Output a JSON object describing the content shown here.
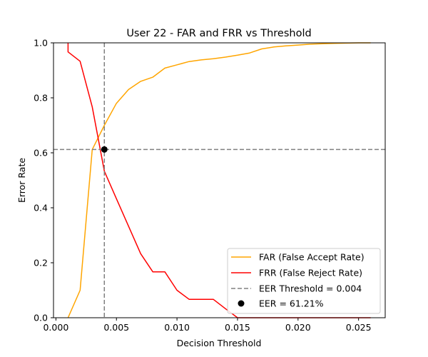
{
  "chart_data": {
    "type": "line",
    "title": "User 22 - FAR and FRR vs Threshold",
    "xlabel": "Decision Threshold",
    "ylabel": "Error Rate",
    "xlim": [
      -0.0002,
      0.0272
    ],
    "ylim": [
      0.0,
      1.0
    ],
    "xticks": [
      0.0,
      0.005,
      0.01,
      0.015,
      0.02,
      0.025
    ],
    "xtick_labels": [
      "0.000",
      "0.005",
      "0.010",
      "0.015",
      "0.020",
      "0.025"
    ],
    "yticks": [
      0.0,
      0.2,
      0.4,
      0.6,
      0.8,
      1.0
    ],
    "ytick_labels": [
      "0.0",
      "0.2",
      "0.4",
      "0.6",
      "0.8",
      "1.0"
    ],
    "legend_position": "lower-right",
    "series": [
      {
        "name": "FAR (False Accept Rate)",
        "color": "#ffa500",
        "x": [
          0.001,
          0.002,
          0.003,
          0.004,
          0.005,
          0.006,
          0.007,
          0.008,
          0.009,
          0.01,
          0.011,
          0.012,
          0.013,
          0.014,
          0.015,
          0.016,
          0.017,
          0.018,
          0.019,
          0.02,
          0.021,
          0.022,
          0.023,
          0.024,
          0.025,
          0.026
        ],
        "y": [
          0.0,
          0.1,
          0.612,
          0.7,
          0.78,
          0.83,
          0.86,
          0.875,
          0.908,
          0.92,
          0.932,
          0.938,
          0.942,
          0.948,
          0.955,
          0.963,
          0.978,
          0.985,
          0.989,
          0.992,
          0.995,
          0.997,
          0.998,
          0.999,
          1.0,
          1.0
        ]
      },
      {
        "name": "FRR (False Reject Rate)",
        "color": "#ff0000",
        "x": [
          0.001,
          0.001,
          0.002,
          0.003,
          0.004,
          0.005,
          0.006,
          0.007,
          0.008,
          0.009,
          0.01,
          0.011,
          0.012,
          0.013,
          0.014,
          0.015,
          0.016,
          0.017,
          0.018,
          0.019,
          0.02,
          0.021,
          0.022,
          0.023,
          0.024,
          0.025,
          0.026
        ],
        "y": [
          1.0,
          0.967,
          0.933,
          0.767,
          0.533,
          0.433,
          0.333,
          0.233,
          0.167,
          0.167,
          0.1,
          0.067,
          0.067,
          0.067,
          0.033,
          0.0,
          0.0,
          0.0,
          0.0,
          0.0,
          0.0,
          0.0,
          0.0,
          0.0,
          0.0,
          0.0,
          0.0
        ]
      }
    ],
    "eer_threshold": 0.004,
    "eer_value": 0.6121,
    "eer_threshold_label": "EER Threshold = 0.004",
    "eer_point_label": "EER = 61.21%",
    "colors": {
      "threshold_line": "#808080",
      "eer_point": "#000000"
    }
  }
}
